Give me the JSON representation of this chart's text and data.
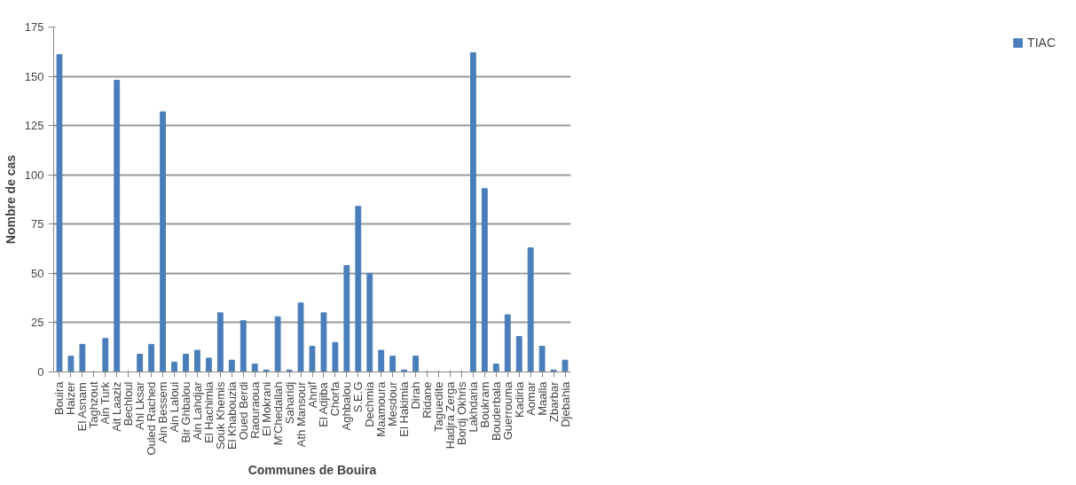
{
  "chart_data": {
    "type": "bar",
    "xlabel": "Communes de Bouira",
    "ylabel": "Nombre de cas",
    "categories": [
      "Bouira",
      "Haizer",
      "El Asnam",
      "Taghzout",
      "Ain Turk",
      "Ait Laaziz",
      "Bechloul",
      "Ahl Lksar",
      "Ouled Rached",
      "Ain Bessem",
      "Ain Laloui",
      "Bir Ghbalou",
      "Ain Lahdjar",
      "El Hachimia",
      "Souk Khemis",
      "El Khabouzia",
      "Oued Berdi",
      "Raouraoua",
      "El Mokrani",
      "M'Chedallah",
      "Saharidj",
      "Ath Mansour",
      "Ahnif",
      "El Adjiba",
      "Chorfa",
      "Aghbalou",
      "S.E.G",
      "Dechmia",
      "Maamoura",
      "Mesdour",
      "El Hakimia",
      "Dirah",
      "Ridane",
      "Taguedite",
      "Hadjra Zerga",
      "Bordj Okhris",
      "Lakhdaria",
      "Boukram",
      "Bouderbala",
      "Guerrouma",
      "Kadiria",
      "Aomar",
      "Maalla",
      "Zbarbar",
      "Djebahia"
    ],
    "series": [
      {
        "name": "TIAC",
        "color": "#4a7ebb",
        "values": [
          161,
          8,
          14,
          0,
          17,
          148,
          0,
          9,
          14,
          132,
          5,
          9,
          11,
          7,
          30,
          6,
          26,
          4,
          1,
          28,
          1,
          35,
          13,
          30,
          15,
          54,
          84,
          50,
          11,
          8,
          1,
          8,
          0,
          0,
          0,
          0,
          162,
          93,
          4,
          29,
          18,
          63,
          13,
          1,
          6
        ]
      }
    ],
    "ylim": [
      0,
      175
    ],
    "yticks": [
      0,
      25,
      50,
      75,
      100,
      125,
      150,
      175
    ],
    "grid": "y",
    "legend": "right"
  }
}
